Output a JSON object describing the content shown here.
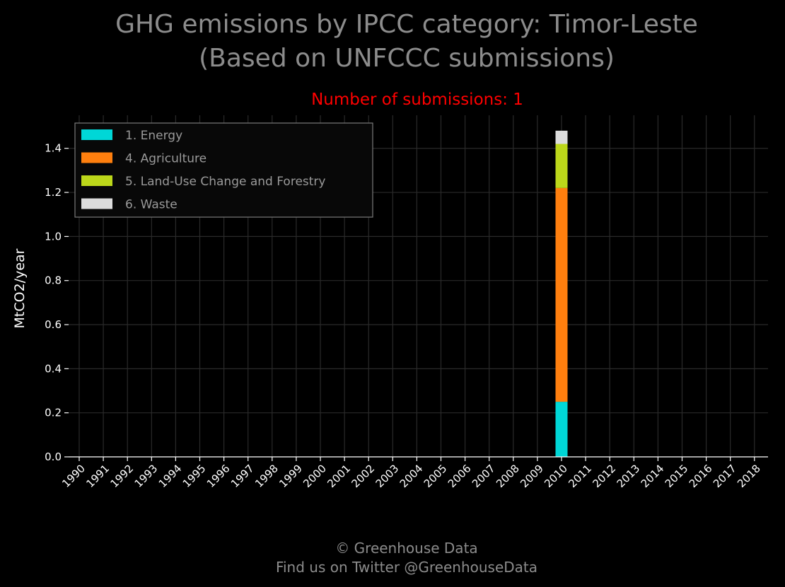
{
  "title_line1": "GHG emissions by IPCC category: Timor-Leste",
  "title_line2": "(Based on UNFCCC submissions)",
  "subtitle": "Number of submissions: 1",
  "footer_line1": "© Greenhouse Data",
  "footer_line2": "Find us on Twitter @GreenhouseData",
  "colors": {
    "background": "#000000",
    "grid": "#2a2a2a",
    "axis": "#ffffff",
    "title": "#8c8c8c",
    "subtitle": "#ff0000"
  },
  "chart_data": {
    "type": "bar",
    "stacked": true,
    "title": "GHG emissions by IPCC category: Timor-Leste (Based on UNFCCC submissions)",
    "subtitle": "Number of submissions: 1",
    "xlabel": "",
    "ylabel": "MtCO2/year",
    "ylim": [
      0,
      1.55
    ],
    "yticks": [
      "0.0",
      "0.2",
      "0.4",
      "0.6",
      "0.8",
      "1.0",
      "1.2",
      "1.4"
    ],
    "grid": true,
    "legend_position": "top-left",
    "categories": [
      "1990",
      "1991",
      "1992",
      "1993",
      "1994",
      "1995",
      "1996",
      "1997",
      "1998",
      "1999",
      "2000",
      "2001",
      "2002",
      "2003",
      "2004",
      "2005",
      "2006",
      "2007",
      "2008",
      "2009",
      "2010",
      "2011",
      "2012",
      "2013",
      "2014",
      "2015",
      "2016",
      "2017",
      "2018"
    ],
    "series": [
      {
        "name": "1. Energy",
        "color": "#00d7d7",
        "values": [
          0,
          0,
          0,
          0,
          0,
          0,
          0,
          0,
          0,
          0,
          0,
          0,
          0,
          0,
          0,
          0,
          0,
          0,
          0,
          0,
          0.25,
          0,
          0,
          0,
          0,
          0,
          0,
          0,
          0
        ]
      },
      {
        "name": "4. Agriculture",
        "color": "#ff7f0e",
        "values": [
          0,
          0,
          0,
          0,
          0,
          0,
          0,
          0,
          0,
          0,
          0,
          0,
          0,
          0,
          0,
          0,
          0,
          0,
          0,
          0,
          0.97,
          0,
          0,
          0,
          0,
          0,
          0,
          0,
          0
        ]
      },
      {
        "name": "5. Land-Use Change and Forestry",
        "color": "#bcd71a",
        "values": [
          0,
          0,
          0,
          0,
          0,
          0,
          0,
          0,
          0,
          0,
          0,
          0,
          0,
          0,
          0,
          0,
          0,
          0,
          0,
          0,
          0.2,
          0,
          0,
          0,
          0,
          0,
          0,
          0,
          0
        ]
      },
      {
        "name": "6. Waste",
        "color": "#dcdcdc",
        "values": [
          0,
          0,
          0,
          0,
          0,
          0,
          0,
          0,
          0,
          0,
          0,
          0,
          0,
          0,
          0,
          0,
          0,
          0,
          0,
          0,
          0.06,
          0,
          0,
          0,
          0,
          0,
          0,
          0,
          0
        ]
      }
    ]
  }
}
